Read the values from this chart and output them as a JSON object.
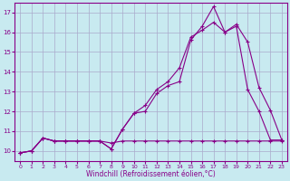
{
  "background_color": "#c8eaf0",
  "grid_color": "#aaaacc",
  "line_color": "#880088",
  "xlabel": "Windchill (Refroidissement éolien,°C)",
  "ylim": [
    9.5,
    17.5
  ],
  "xlim": [
    -0.5,
    23.5
  ],
  "yticks": [
    10,
    11,
    12,
    13,
    14,
    15,
    16,
    17
  ],
  "xticks": [
    0,
    1,
    2,
    3,
    4,
    5,
    6,
    7,
    8,
    9,
    10,
    11,
    12,
    13,
    14,
    15,
    16,
    17,
    18,
    19,
    20,
    21,
    22,
    23
  ],
  "line1_x": [
    0,
    1,
    2,
    3,
    4,
    5,
    6,
    7,
    8,
    9,
    10,
    11,
    12,
    13,
    14,
    15,
    16,
    17,
    18,
    19,
    20,
    21,
    22,
    23
  ],
  "line1_y": [
    9.9,
    10.0,
    10.65,
    10.5,
    10.5,
    10.5,
    10.5,
    10.5,
    10.4,
    10.5,
    10.5,
    10.5,
    10.5,
    10.5,
    10.5,
    10.5,
    10.5,
    10.5,
    10.5,
    10.5,
    10.5,
    10.5,
    10.5,
    10.5
  ],
  "line2_x": [
    0,
    1,
    2,
    3,
    4,
    5,
    6,
    7,
    8,
    9,
    10,
    11,
    12,
    13,
    14,
    15,
    16,
    17,
    18,
    19,
    20,
    21,
    22,
    23
  ],
  "line2_y": [
    9.9,
    10.0,
    10.65,
    10.5,
    10.5,
    10.5,
    10.5,
    10.5,
    10.1,
    11.1,
    11.9,
    12.0,
    12.9,
    13.3,
    13.5,
    15.6,
    16.3,
    17.3,
    16.0,
    16.3,
    13.1,
    12.0,
    10.55,
    10.55
  ],
  "line3_x": [
    0,
    1,
    2,
    3,
    4,
    5,
    6,
    7,
    8,
    9,
    10,
    11,
    12,
    13,
    14,
    15,
    16,
    17,
    18,
    19,
    20,
    21,
    22,
    23
  ],
  "line3_y": [
    9.9,
    10.0,
    10.65,
    10.5,
    10.5,
    10.5,
    10.5,
    10.5,
    10.1,
    11.1,
    11.9,
    12.3,
    13.1,
    13.5,
    14.2,
    15.75,
    16.1,
    16.5,
    16.0,
    16.4,
    15.5,
    13.2,
    12.05,
    10.55
  ]
}
